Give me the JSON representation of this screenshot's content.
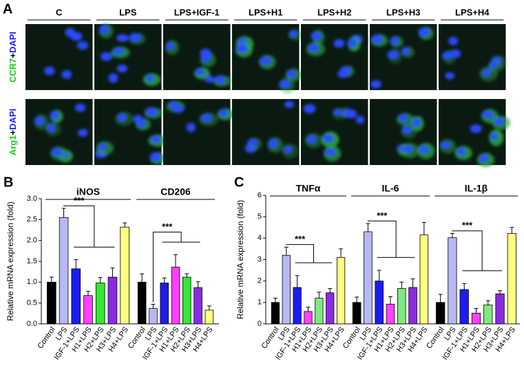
{
  "panel_a": {
    "label": "A",
    "columns": [
      "C",
      "LPS",
      "LPS+IGF-1",
      "LPS+H1",
      "LPS+H2",
      "LPS+H3",
      "LPS+H4"
    ],
    "rows": [
      {
        "parts": [
          "CCR7",
          "+",
          "DAPI"
        ]
      },
      {
        "parts": [
          "Arg1",
          "+",
          "DAPI"
        ]
      }
    ]
  },
  "chart_data": [
    {
      "type": "grouped-bar",
      "panel_label": "B",
      "y_label": "Relative mRNA expression (fold)",
      "categories": [
        "Control",
        "LPS",
        "IGF-1+LPS",
        "H1+LPS",
        "H2+LPS",
        "H3+LPS",
        "H4+LPS"
      ],
      "colors": [
        "#000000",
        "#b8b8f2",
        "#1c1cf0",
        "#ff40ff",
        "#30ea30",
        "#8a2be2",
        "#ffff80"
      ],
      "ylim": [
        0,
        3
      ],
      "yticks": [
        {
          "value": 0,
          "label": "0.0"
        },
        0.5,
        {
          "value": 1,
          "label": "1.0"
        },
        1.5,
        {
          "value": 2,
          "label": "2.0"
        },
        2.5,
        {
          "value": 3,
          "label": "3.0"
        }
      ],
      "significance": "***",
      "groups": [
        {
          "name": "iNOS",
          "values": [
            1.0,
            2.55,
            1.32,
            0.68,
            0.98,
            1.12,
            2.32
          ],
          "errors": [
            0.12,
            0.22,
            0.22,
            0.1,
            0.13,
            0.22,
            0.1
          ]
        },
        {
          "name": "CD206",
          "values": [
            1.0,
            0.37,
            0.98,
            1.36,
            1.12,
            0.87,
            0.33
          ],
          "errors": [
            0.2,
            0.1,
            0.12,
            0.3,
            0.08,
            0.14,
            0.1
          ]
        }
      ]
    },
    {
      "type": "grouped-bar",
      "panel_label": "C",
      "y_label": "Relative mRNA expression (fold)",
      "categories": [
        "Control",
        "LPS",
        "IGF-1+LPS",
        "H1+LPS",
        "H2+LPS",
        "H3+LPS",
        "H4+LPS"
      ],
      "colors": [
        "#000000",
        "#b8b8f2",
        "#1c1cf0",
        "#ff40ff",
        "#80e880",
        "#8a2be2",
        "#ffff80"
      ],
      "ylim": [
        0,
        6
      ],
      "yticks": [
        0,
        1,
        2,
        3,
        4,
        5,
        6
      ],
      "significance": "***",
      "groups": [
        {
          "name": "TNFα",
          "values": [
            1.0,
            3.2,
            1.7,
            0.58,
            1.2,
            1.45,
            3.1
          ],
          "errors": [
            0.2,
            0.38,
            0.55,
            0.2,
            0.28,
            0.2,
            0.4
          ]
        },
        {
          "name": "IL-6",
          "values": [
            1.0,
            4.3,
            2.0,
            0.92,
            1.65,
            1.7,
            4.15
          ],
          "errors": [
            0.25,
            0.38,
            0.5,
            0.35,
            0.3,
            0.4,
            0.58
          ]
        },
        {
          "name": "IL-1β",
          "values": [
            1.0,
            4.02,
            1.6,
            0.5,
            0.88,
            1.4,
            4.22
          ],
          "errors": [
            0.38,
            0.2,
            0.28,
            0.22,
            0.2,
            0.15,
            0.28
          ]
        }
      ]
    }
  ]
}
